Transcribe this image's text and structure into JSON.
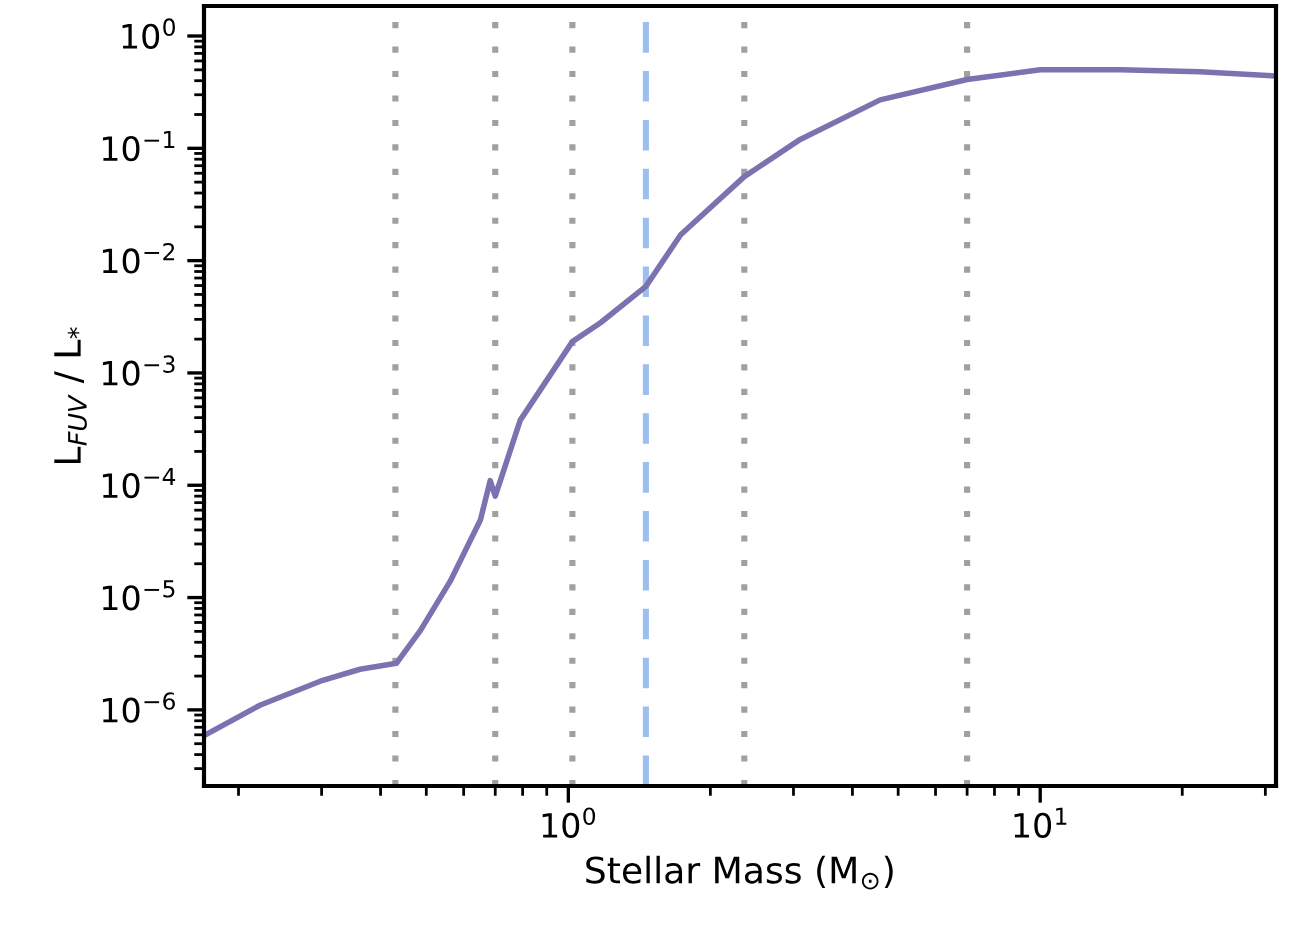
{
  "chart_data": {
    "type": "line",
    "xlabel": "Stellar Mass (M$_{⊙}$)",
    "ylabel": "L$_{FUV}$ / L$_{*}$",
    "log": "xy",
    "x": [
      0.169,
      0.222,
      0.298,
      0.362,
      0.432,
      0.486,
      0.562,
      0.651,
      0.683,
      0.7,
      0.791,
      1.02,
      1.17,
      1.46,
      1.73,
      2.36,
      3.1,
      4.58,
      7.0,
      10,
      14.8,
      21.8,
      31.6
    ],
    "series": [
      {
        "color": "#7b72b0",
        "values": [
          5.9e-07,
          1.1e-06,
          1.8e-06,
          2.3e-06,
          2.6e-06,
          5.1e-06,
          1.4e-05,
          4.9e-05,
          0.00011,
          8e-05,
          0.00038,
          0.0019,
          0.0028,
          0.0059,
          0.017,
          0.056,
          0.12,
          0.27,
          0.41,
          0.5,
          0.5,
          0.48,
          0.44
        ]
      }
    ],
    "xlim": [
      0.169,
      31.6
    ],
    "ylim": [
      2.1e-07,
      1.85
    ],
    "xticks": [
      {
        "value": 1,
        "label": "10$^{0}$"
      },
      {
        "value": 10,
        "label": "10$^{1}$"
      }
    ],
    "yticks": [
      {
        "value": 1e-06,
        "label": "10$^{−6}$"
      },
      {
        "value": 1e-05,
        "label": "10$^{−5}$"
      },
      {
        "value": 0.0001,
        "label": "10$^{−4}$"
      },
      {
        "value": 0.001,
        "label": "10$^{−3}$"
      },
      {
        "value": 0.01,
        "label": "10$^{−2}$"
      },
      {
        "value": 0.1,
        "label": "10$^{−1}$"
      },
      {
        "value": 1,
        "label": "10$^{0}$"
      }
    ],
    "ref_lines": [
      {
        "axis": "x",
        "value": 0.43,
        "color": "#a0a0a0",
        "line_style": "dotted"
      },
      {
        "axis": "x",
        "value": 0.7,
        "color": "#a0a0a0",
        "line_style": "dotted"
      },
      {
        "axis": "x",
        "value": 1.02,
        "color": "#a0a0a0",
        "line_style": "dotted"
      },
      {
        "axis": "x",
        "value": 1.46,
        "color": "#9dbff0",
        "line_style": "dashed"
      },
      {
        "axis": "x",
        "value": 2.36,
        "color": "#a0a0a0",
        "line_style": "dotted"
      },
      {
        "axis": "x",
        "value": 7.0,
        "color": "#a0a0a0",
        "line_style": "dotted"
      }
    ],
    "grid": false,
    "legend": false
  }
}
